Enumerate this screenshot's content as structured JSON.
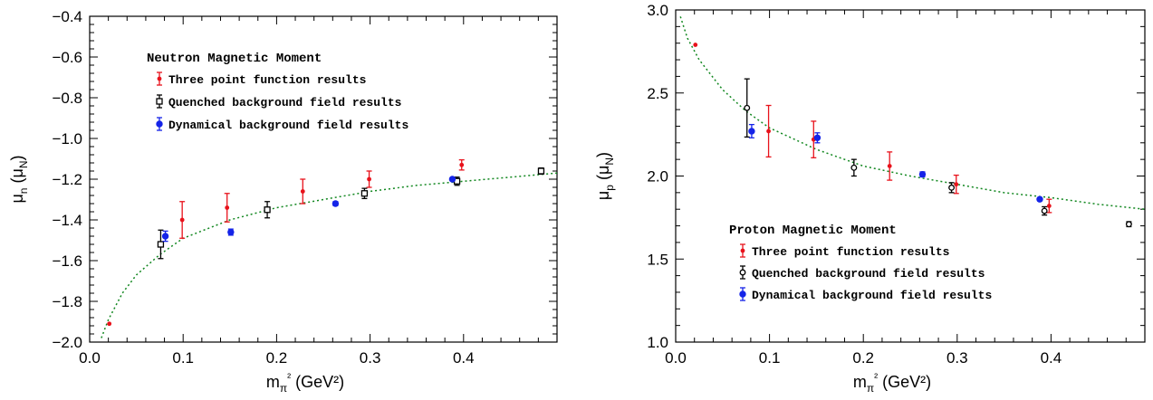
{
  "chart_data": [
    {
      "type": "scatter",
      "title": "Neutron Magnetic Moment",
      "xlabel": "m_π² (GeV²)",
      "ylabel": "μ_n (μ_N)",
      "xlim": [
        0.0,
        0.5
      ],
      "ylim": [
        -2.0,
        -0.4
      ],
      "xticks": [
        "0.0",
        "0.1",
        "0.2",
        "0.3",
        "0.4"
      ],
      "yticks": [
        "−2.0",
        "−1.8",
        "−1.6",
        "−1.4",
        "−1.2",
        "−1.0",
        "−0.8",
        "−0.6",
        "−0.4"
      ],
      "legend_position": "top-left",
      "fit_curve": [
        [
          0.0125,
          -1.98
        ],
        [
          0.02,
          -1.89
        ],
        [
          0.035,
          -1.76
        ],
        [
          0.05,
          -1.67
        ],
        [
          0.075,
          -1.57
        ],
        [
          0.1,
          -1.49
        ],
        [
          0.15,
          -1.4
        ],
        [
          0.2,
          -1.34
        ],
        [
          0.25,
          -1.3
        ],
        [
          0.3,
          -1.26
        ],
        [
          0.35,
          -1.23
        ],
        [
          0.4,
          -1.21
        ],
        [
          0.45,
          -1.19
        ],
        [
          0.5,
          -1.17
        ]
      ],
      "series": [
        {
          "name": "Three point function results",
          "color": "#e8121b",
          "marker": "point",
          "points": [
            {
              "x": 0.021,
              "y": -1.91,
              "err": 0.0
            },
            {
              "x": 0.099,
              "y": -1.4,
              "err": 0.09
            },
            {
              "x": 0.147,
              "y": -1.34,
              "err": 0.07
            },
            {
              "x": 0.228,
              "y": -1.26,
              "err": 0.06
            },
            {
              "x": 0.299,
              "y": -1.2,
              "err": 0.04
            },
            {
              "x": 0.398,
              "y": -1.13,
              "err": 0.025
            }
          ]
        },
        {
          "name": "Quenched background field results",
          "color": "#000000",
          "marker": "square",
          "points": [
            {
              "x": 0.076,
              "y": -1.52,
              "err": 0.07
            },
            {
              "x": 0.19,
              "y": -1.35,
              "err": 0.04
            },
            {
              "x": 0.294,
              "y": -1.27,
              "err": 0.025
            },
            {
              "x": 0.393,
              "y": -1.21,
              "err": 0.02
            },
            {
              "x": 0.483,
              "y": -1.16,
              "err": 0.015
            }
          ]
        },
        {
          "name": "Dynamical background field results",
          "color": "#1524e8",
          "marker": "dot",
          "points": [
            {
              "x": 0.081,
              "y": -1.48,
              "err": 0.025
            },
            {
              "x": 0.151,
              "y": -1.46,
              "err": 0.015
            },
            {
              "x": 0.263,
              "y": -1.32,
              "err": 0.01
            },
            {
              "x": 0.388,
              "y": -1.2,
              "err": 0.005
            }
          ]
        }
      ]
    },
    {
      "type": "scatter",
      "title": "Proton Magnetic Moment",
      "xlabel": "m_π² (GeV²)",
      "ylabel": "μ_p (μ_N)",
      "xlim": [
        0.0,
        0.5
      ],
      "ylim": [
        1.0,
        3.0
      ],
      "xticks": [
        "0.0",
        "0.1",
        "0.2",
        "0.3",
        "0.4"
      ],
      "yticks": [
        "1.0",
        "1.5",
        "2.0",
        "2.5",
        "3.0"
      ],
      "legend_position": "bottom-left",
      "fit_curve": [
        [
          0.005,
          2.96
        ],
        [
          0.0125,
          2.83
        ],
        [
          0.025,
          2.7
        ],
        [
          0.05,
          2.52
        ],
        [
          0.075,
          2.39
        ],
        [
          0.1,
          2.29
        ],
        [
          0.15,
          2.16
        ],
        [
          0.2,
          2.06
        ],
        [
          0.25,
          2.0
        ],
        [
          0.3,
          1.95
        ],
        [
          0.35,
          1.9
        ],
        [
          0.4,
          1.87
        ],
        [
          0.45,
          1.83
        ],
        [
          0.5,
          1.8
        ]
      ],
      "series": [
        {
          "name": "Three point function results",
          "color": "#e8121b",
          "marker": "point",
          "points": [
            {
              "x": 0.021,
              "y": 2.79,
              "err": 0.0
            },
            {
              "x": 0.099,
              "y": 2.27,
              "err": 0.155
            },
            {
              "x": 0.147,
              "y": 2.22,
              "err": 0.11
            },
            {
              "x": 0.228,
              "y": 2.06,
              "err": 0.085
            },
            {
              "x": 0.299,
              "y": 1.95,
              "err": 0.055
            },
            {
              "x": 0.398,
              "y": 1.82,
              "err": 0.04
            }
          ]
        },
        {
          "name": "Quenched background field results",
          "color": "#000000",
          "marker": "circle",
          "points": [
            {
              "x": 0.076,
              "y": 2.41,
              "err": 0.175
            },
            {
              "x": 0.19,
              "y": 2.05,
              "err": 0.05
            },
            {
              "x": 0.294,
              "y": 1.93,
              "err": 0.03
            },
            {
              "x": 0.393,
              "y": 1.79,
              "err": 0.025
            },
            {
              "x": 0.483,
              "y": 1.71,
              "err": 0.015
            }
          ]
        },
        {
          "name": "Dynamical background field results",
          "color": "#1524e8",
          "marker": "dot",
          "points": [
            {
              "x": 0.081,
              "y": 2.27,
              "err": 0.04
            },
            {
              "x": 0.151,
              "y": 2.23,
              "err": 0.03
            },
            {
              "x": 0.263,
              "y": 2.01,
              "err": 0.015
            },
            {
              "x": 0.388,
              "y": 1.86,
              "err": 0.01
            }
          ]
        }
      ]
    }
  ]
}
